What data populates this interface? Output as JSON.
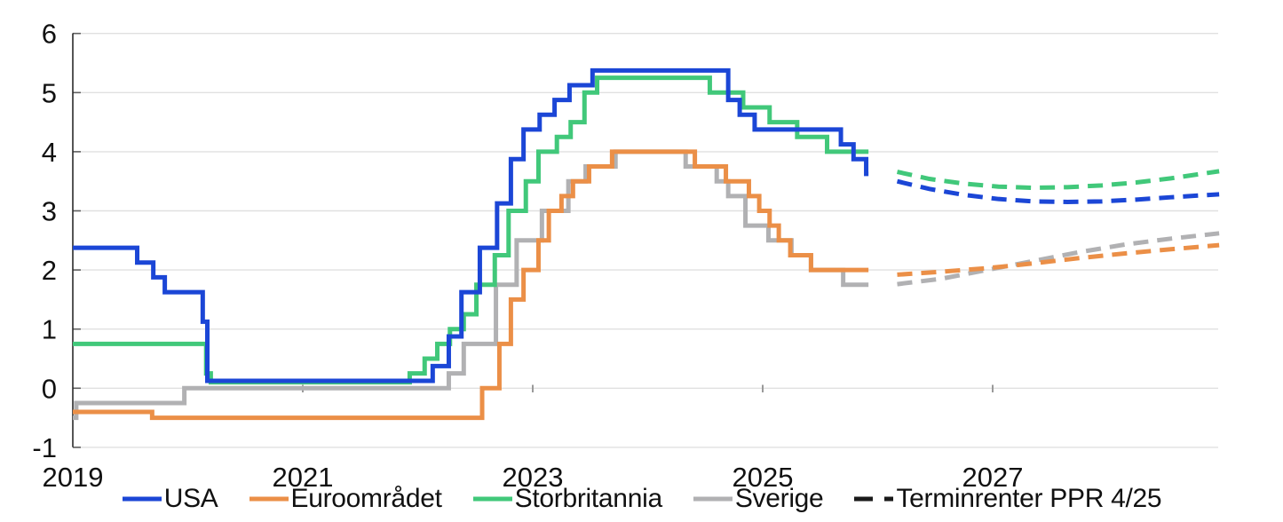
{
  "chart_data": {
    "type": "line",
    "title": "",
    "xlabel": "",
    "ylabel": "",
    "xlim": [
      2019,
      2028.97
    ],
    "ylim": [
      -1,
      6
    ],
    "grid": true,
    "x_ticks": [
      2019,
      2021,
      2023,
      2025,
      2027
    ],
    "x_tick_labels": [
      "2019",
      "2021",
      "2023",
      "2025",
      "2027"
    ],
    "y_ticks": [
      -1,
      0,
      1,
      2,
      3,
      4,
      5,
      6
    ],
    "y_tick_labels": [
      "-1",
      "0",
      "1",
      "2",
      "3",
      "4",
      "5",
      "6"
    ],
    "legend_position": "bottom",
    "style": {
      "grid_color": "#e0e0e0",
      "axis_color": "#2a2a2a",
      "tick_color": "#606060",
      "x_tick_color": "#9a9a9a",
      "text_color": "#111111",
      "line_width": 5
    },
    "series": [
      {
        "name": "Sverige",
        "color": "#b1b1b3",
        "step": true,
        "dash": false,
        "end": 2025.92,
        "points": [
          [
            2019.0,
            -0.5
          ],
          [
            2019.03,
            -0.25
          ],
          [
            2019.97,
            0.0
          ],
          [
            2022.27,
            0.25
          ],
          [
            2022.4,
            0.75
          ],
          [
            2022.68,
            1.75
          ],
          [
            2022.86,
            2.5
          ],
          [
            2023.08,
            3.0
          ],
          [
            2023.31,
            3.5
          ],
          [
            2023.46,
            3.75
          ],
          [
            2023.72,
            4.0
          ],
          [
            2024.33,
            3.75
          ],
          [
            2024.6,
            3.5
          ],
          [
            2024.7,
            3.25
          ],
          [
            2024.85,
            2.75
          ],
          [
            2025.05,
            2.5
          ],
          [
            2025.25,
            2.25
          ],
          [
            2025.42,
            2.0
          ],
          [
            2025.7,
            1.75
          ]
        ]
      },
      {
        "name": "Euroområdet",
        "color": "#eb8f47",
        "step": true,
        "dash": false,
        "end": 2025.92,
        "points": [
          [
            2019.0,
            -0.4
          ],
          [
            2019.69,
            -0.5
          ],
          [
            2022.56,
            0.0
          ],
          [
            2022.71,
            0.75
          ],
          [
            2022.81,
            1.5
          ],
          [
            2022.92,
            2.0
          ],
          [
            2023.05,
            2.5
          ],
          [
            2023.14,
            3.0
          ],
          [
            2023.25,
            3.25
          ],
          [
            2023.35,
            3.5
          ],
          [
            2023.49,
            3.75
          ],
          [
            2023.69,
            4.0
          ],
          [
            2024.41,
            3.75
          ],
          [
            2024.68,
            3.5
          ],
          [
            2024.88,
            3.25
          ],
          [
            2024.97,
            3.0
          ],
          [
            2025.06,
            2.75
          ],
          [
            2025.14,
            2.5
          ],
          [
            2025.24,
            2.25
          ],
          [
            2025.42,
            2.0
          ]
        ]
      },
      {
        "name": "Storbritannia",
        "color": "#41c87a",
        "step": true,
        "dash": false,
        "end": 2025.92,
        "points": [
          [
            2019.0,
            0.75
          ],
          [
            2020.16,
            0.25
          ],
          [
            2020.2,
            0.1
          ],
          [
            2021.93,
            0.25
          ],
          [
            2022.06,
            0.5
          ],
          [
            2022.17,
            0.75
          ],
          [
            2022.28,
            1.0
          ],
          [
            2022.4,
            1.25
          ],
          [
            2022.51,
            1.75
          ],
          [
            2022.67,
            2.25
          ],
          [
            2022.79,
            3.0
          ],
          [
            2022.94,
            3.5
          ],
          [
            2023.05,
            4.0
          ],
          [
            2023.21,
            4.25
          ],
          [
            2023.33,
            4.5
          ],
          [
            2023.45,
            5.0
          ],
          [
            2023.56,
            5.25
          ],
          [
            2024.54,
            5.0
          ],
          [
            2024.83,
            4.75
          ],
          [
            2025.06,
            4.5
          ],
          [
            2025.3,
            4.25
          ],
          [
            2025.56,
            4.0
          ]
        ]
      },
      {
        "name": "USA",
        "color": "#1b46d6",
        "step": true,
        "dash": false,
        "end": 2025.92,
        "points": [
          [
            2019.0,
            2.375
          ],
          [
            2019.56,
            2.125
          ],
          [
            2019.7,
            1.875
          ],
          [
            2019.8,
            1.625
          ],
          [
            2020.13,
            1.125
          ],
          [
            2020.17,
            0.125
          ],
          [
            2022.13,
            0.375
          ],
          [
            2022.27,
            0.875
          ],
          [
            2022.38,
            1.625
          ],
          [
            2022.54,
            2.375
          ],
          [
            2022.69,
            3.125
          ],
          [
            2022.81,
            3.875
          ],
          [
            2022.92,
            4.375
          ],
          [
            2023.06,
            4.625
          ],
          [
            2023.19,
            4.875
          ],
          [
            2023.32,
            5.125
          ],
          [
            2023.52,
            5.375
          ],
          [
            2024.7,
            4.875
          ],
          [
            2024.8,
            4.625
          ],
          [
            2024.93,
            4.375
          ],
          [
            2025.68,
            4.125
          ],
          [
            2025.79,
            3.875
          ],
          [
            2025.9,
            3.625
          ]
        ]
      },
      {
        "name": "Sverige terminrenter PPR 4/25",
        "color": "#b1b1b3",
        "step": false,
        "dash": true,
        "points": [
          [
            2026.17,
            1.76
          ],
          [
            2026.55,
            1.85
          ],
          [
            2026.95,
            2.0
          ],
          [
            2027.35,
            2.15
          ],
          [
            2027.75,
            2.3
          ],
          [
            2028.15,
            2.43
          ],
          [
            2028.55,
            2.53
          ],
          [
            2028.97,
            2.62
          ]
        ]
      },
      {
        "name": "Euroområdet terminrenter PPR 4/25",
        "color": "#eb8f47",
        "step": false,
        "dash": true,
        "points": [
          [
            2026.17,
            1.92
          ],
          [
            2026.55,
            1.97
          ],
          [
            2026.95,
            2.03
          ],
          [
            2027.35,
            2.11
          ],
          [
            2027.75,
            2.2
          ],
          [
            2028.15,
            2.28
          ],
          [
            2028.55,
            2.35
          ],
          [
            2028.97,
            2.42
          ]
        ]
      },
      {
        "name": "Storbritannia terminrenter PPR 4/25",
        "color": "#41c87a",
        "step": false,
        "dash": true,
        "points": [
          [
            2026.17,
            3.66
          ],
          [
            2026.45,
            3.54
          ],
          [
            2026.75,
            3.46
          ],
          [
            2027.05,
            3.41
          ],
          [
            2027.35,
            3.39
          ],
          [
            2027.65,
            3.4
          ],
          [
            2027.95,
            3.43
          ],
          [
            2028.25,
            3.48
          ],
          [
            2028.55,
            3.55
          ],
          [
            2028.97,
            3.67
          ]
        ]
      },
      {
        "name": "USA terminrenter PPR 4/25",
        "color": "#1b46d6",
        "step": false,
        "dash": true,
        "points": [
          [
            2026.17,
            3.5
          ],
          [
            2026.45,
            3.37
          ],
          [
            2026.75,
            3.27
          ],
          [
            2027.05,
            3.2
          ],
          [
            2027.35,
            3.16
          ],
          [
            2027.65,
            3.15
          ],
          [
            2027.95,
            3.16
          ],
          [
            2028.25,
            3.19
          ],
          [
            2028.55,
            3.23
          ],
          [
            2028.97,
            3.28
          ]
        ]
      }
    ],
    "legend": [
      {
        "label": "USA",
        "color": "#1b46d6",
        "dash": false
      },
      {
        "label": "Euroområdet",
        "color": "#eb8f47",
        "dash": false
      },
      {
        "label": "Storbritannia",
        "color": "#41c87a",
        "dash": false
      },
      {
        "label": "Sverige",
        "color": "#b1b1b3",
        "dash": false
      },
      {
        "label": "Terminrenter PPR 4/25",
        "color": "#1a1a1a",
        "dash": true
      }
    ]
  }
}
